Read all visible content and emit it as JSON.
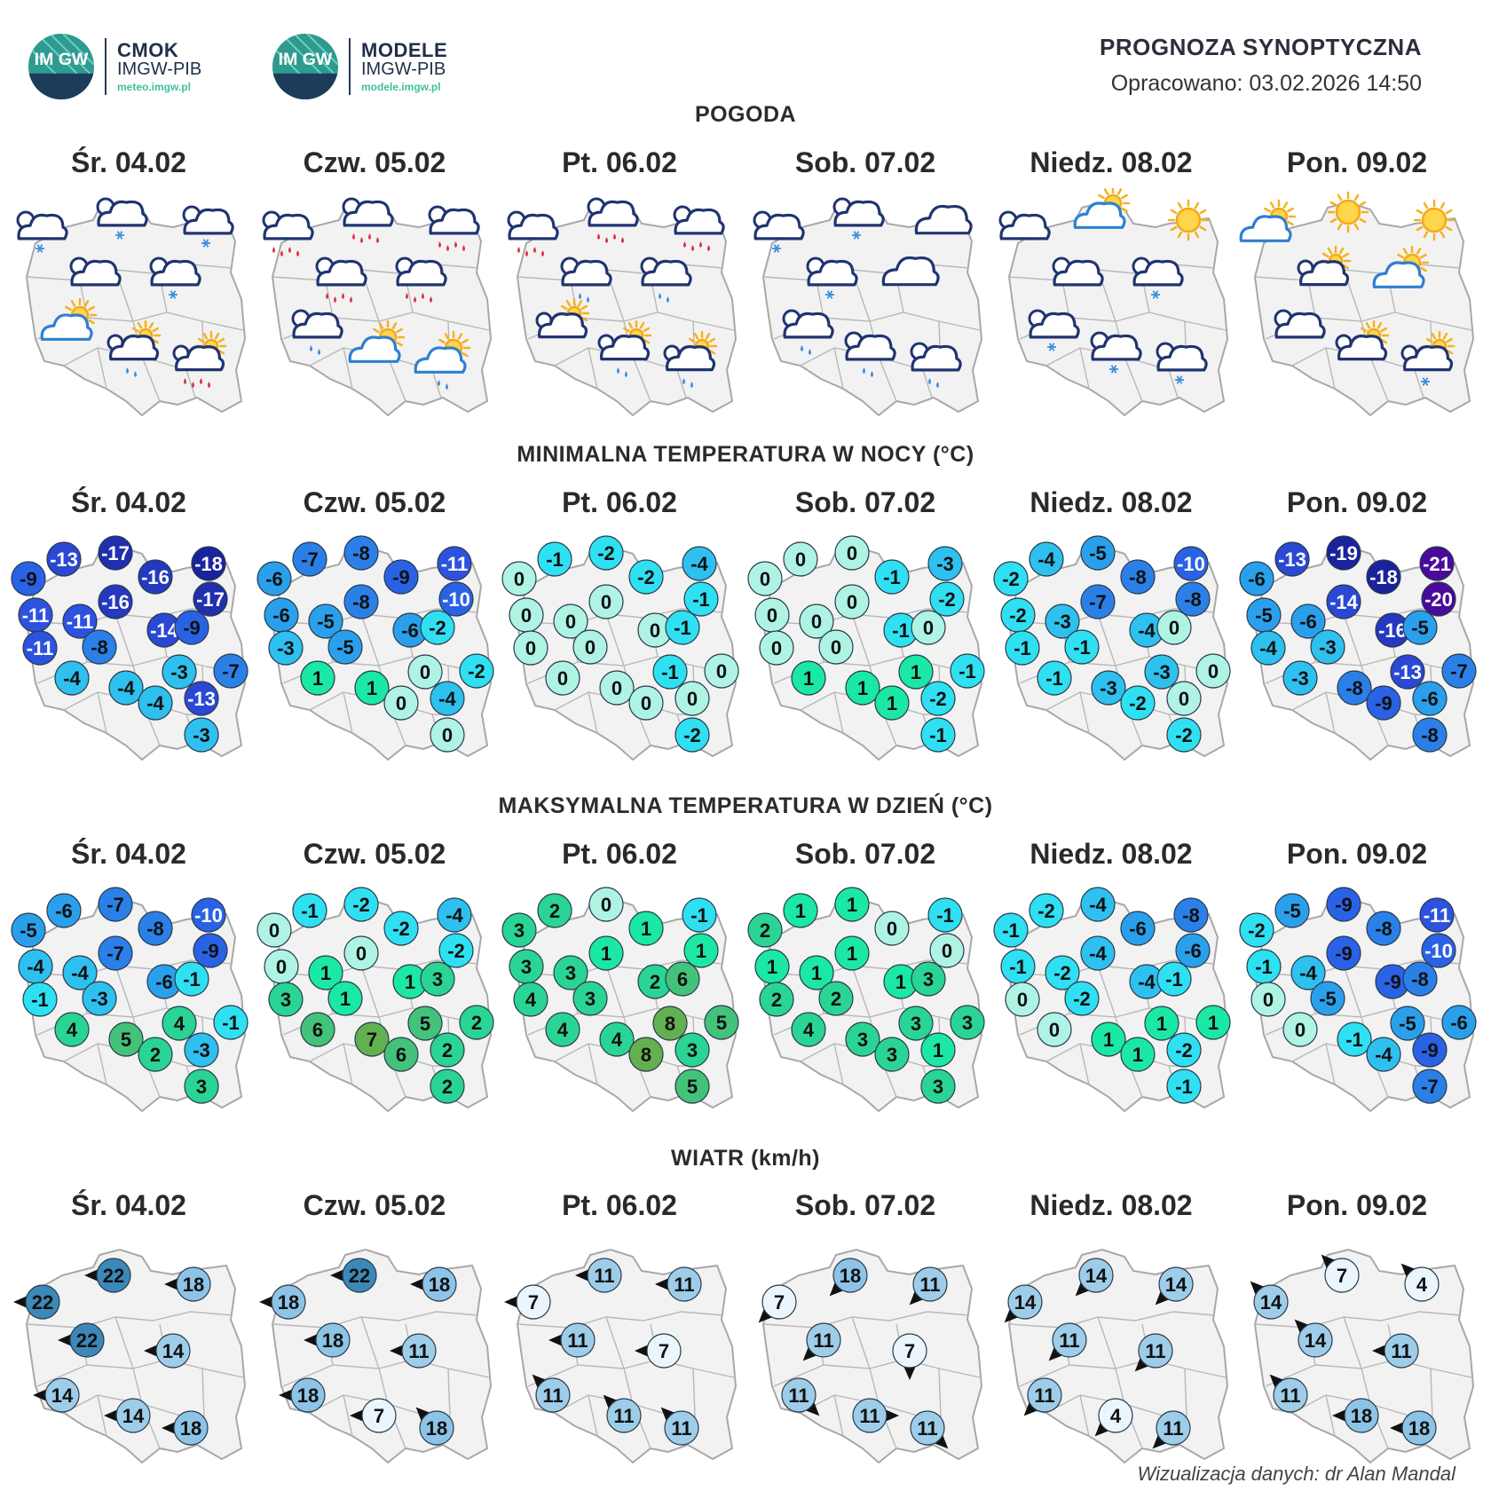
{
  "header": {
    "logo1": {
      "name": "CMOK",
      "org": "IMGW-PIB",
      "url": "meteo.imgw.pl",
      "emblem": "IM GW"
    },
    "logo2": {
      "name": "MODELE",
      "org": "IMGW-PIB",
      "url": "modele.imgw.pl",
      "emblem": "IM GW"
    },
    "title": "PROGNOZA SYNOPTYCZNA",
    "created": "Opracowano: 03.02.2026 14:50"
  },
  "days": [
    "Śr. 04.02",
    "Czw. 05.02",
    "Pt. 06.02",
    "Sob. 07.02",
    "Niedz. 08.02",
    "Pon. 09.02"
  ],
  "sections": {
    "weather": "POGODA",
    "tmin": "MINIMALNA TEMPERATURA W NOCY (°C)",
    "tmax": "MAKSYMALNA TEMPERATURA W DZIEŃ (°C)",
    "wind": "WIATR (km/h)"
  },
  "weather": [
    [
      "cloud-snow",
      "cloud-snow",
      "cloud-snow",
      "cloud-light",
      "cloud-light-snow",
      "partly-sunny",
      "cloud-sun-rain",
      "cloud-sun-heavy-rain"
    ],
    [
      "cloud-heavy-rain",
      "cloud-heavy-rain",
      "cloud-heavy-rain",
      "cloud-heavy-rain",
      "cloud-heavy-rain",
      "cloud-rain",
      "partly-sunny",
      "partly-sunny-rain"
    ],
    [
      "cloud-heavy-rain",
      "cloud-heavy-rain",
      "cloud-heavy-rain",
      "cloud-rain",
      "cloud-rain",
      "cloud-sun-light",
      "cloud-sun-rain",
      "cloud-sun-rain"
    ],
    [
      "cloud-snow",
      "cloud-snow",
      "overcast",
      "cloud-snow",
      "overcast",
      "cloud-rain",
      "cloud-rain",
      "cloud-rain"
    ],
    [
      "cloud-light",
      "partly-sunny",
      "sunny",
      "cloud-light",
      "cloud-snow",
      "cloud-snow",
      "cloud-snow",
      "cloud-snow"
    ],
    [
      "partly-sunny",
      "sunny",
      "sunny",
      "cloud-sun-light",
      "partly-sunny",
      "cloud-light",
      "cloud-sun-light",
      "cloud-sun-snow"
    ]
  ],
  "tmin": [
    [
      -9,
      -13,
      -17,
      -16,
      -18,
      -17,
      -11,
      -11,
      -16,
      -14,
      -11,
      -8,
      -4,
      -4,
      -4,
      -3,
      -9,
      -13,
      -7,
      -3
    ],
    [
      -6,
      -7,
      -8,
      -9,
      -11,
      -10,
      -6,
      -5,
      -8,
      -6,
      -3,
      -5,
      1,
      1,
      0,
      0,
      -2,
      -4,
      -2,
      0
    ],
    [
      0,
      -1,
      -2,
      -2,
      -4,
      -1,
      0,
      0,
      0,
      0,
      0,
      0,
      0,
      0,
      0,
      -1,
      -1,
      0,
      0,
      -2
    ],
    [
      0,
      0,
      0,
      -1,
      -3,
      -2,
      0,
      0,
      0,
      -1,
      0,
      0,
      1,
      1,
      1,
      1,
      0,
      -2,
      -1,
      -1
    ],
    [
      -2,
      -4,
      -5,
      -8,
      -10,
      -8,
      -2,
      -3,
      -7,
      -4,
      -1,
      -1,
      -1,
      -3,
      -2,
      -3,
      0,
      0,
      0,
      -2
    ],
    [
      -6,
      -13,
      -19,
      -18,
      -21,
      -20,
      -5,
      -6,
      -14,
      -16,
      -4,
      -3,
      -3,
      -8,
      -9,
      -13,
      -5,
      -6,
      -7,
      -8
    ]
  ],
  "tmax": [
    [
      -5,
      -6,
      -7,
      -8,
      -10,
      -9,
      -4,
      -4,
      -7,
      -6,
      -1,
      -3,
      4,
      5,
      2,
      4,
      -1,
      -3,
      -1,
      3
    ],
    [
      0,
      -1,
      -2,
      -2,
      -4,
      -2,
      0,
      1,
      0,
      1,
      3,
      1,
      6,
      7,
      6,
      5,
      3,
      2,
      2,
      2
    ],
    [
      3,
      2,
      0,
      1,
      -1,
      1,
      3,
      3,
      1,
      2,
      4,
      3,
      4,
      4,
      8,
      8,
      6,
      3,
      5,
      5
    ],
    [
      2,
      1,
      1,
      0,
      -1,
      0,
      1,
      1,
      1,
      1,
      2,
      2,
      4,
      3,
      3,
      3,
      3,
      1,
      3,
      3
    ],
    [
      -1,
      -2,
      -4,
      -6,
      -8,
      -6,
      -1,
      -2,
      -4,
      -4,
      0,
      -2,
      0,
      1,
      1,
      1,
      -1,
      -2,
      1,
      -1
    ],
    [
      -2,
      -5,
      -9,
      -8,
      -11,
      -10,
      -1,
      -4,
      -9,
      -9,
      0,
      -5,
      0,
      -1,
      -4,
      -5,
      -8,
      -9,
      -6,
      -7
    ]
  ],
  "wind": [
    [
      {
        "v": 22,
        "d": "W"
      },
      {
        "v": 22,
        "d": "W"
      },
      {
        "v": 18,
        "d": "W"
      },
      {
        "v": 22,
        "d": "W"
      },
      {
        "v": 14,
        "d": "W"
      },
      {
        "v": 14,
        "d": "W"
      },
      {
        "v": 14,
        "d": "W"
      },
      {
        "v": 18,
        "d": "W"
      }
    ],
    [
      {
        "v": 18,
        "d": "W"
      },
      {
        "v": 22,
        "d": "W"
      },
      {
        "v": 18,
        "d": "W"
      },
      {
        "v": 18,
        "d": "W"
      },
      {
        "v": 11,
        "d": "W"
      },
      {
        "v": 18,
        "d": "W"
      },
      {
        "v": 7,
        "d": "W"
      },
      {
        "v": 18,
        "d": "NW"
      }
    ],
    [
      {
        "v": 7,
        "d": "W"
      },
      {
        "v": 11,
        "d": "W"
      },
      {
        "v": 11,
        "d": "W"
      },
      {
        "v": 11,
        "d": "W"
      },
      {
        "v": 7,
        "d": "W"
      },
      {
        "v": 11,
        "d": "NW"
      },
      {
        "v": 11,
        "d": "NW"
      },
      {
        "v": 11,
        "d": "NW"
      }
    ],
    [
      {
        "v": 7,
        "d": "SW"
      },
      {
        "v": 18,
        "d": "SW"
      },
      {
        "v": 11,
        "d": "SW"
      },
      {
        "v": 11,
        "d": "SW"
      },
      {
        "v": 7,
        "d": "S"
      },
      {
        "v": 11,
        "d": "SE"
      },
      {
        "v": 11,
        "d": "E"
      },
      {
        "v": 11,
        "d": "SE"
      }
    ],
    [
      {
        "v": 14,
        "d": "SW"
      },
      {
        "v": 14,
        "d": "SW"
      },
      {
        "v": 14,
        "d": "SW"
      },
      {
        "v": 11,
        "d": "SW"
      },
      {
        "v": 11,
        "d": "SW"
      },
      {
        "v": 11,
        "d": "SW"
      },
      {
        "v": 4,
        "d": "SW"
      },
      {
        "v": 11,
        "d": "SW"
      }
    ],
    [
      {
        "v": 14,
        "d": "NW"
      },
      {
        "v": 7,
        "d": "NW"
      },
      {
        "v": 4,
        "d": "NW"
      },
      {
        "v": 14,
        "d": "NW"
      },
      {
        "v": 11,
        "d": "W"
      },
      {
        "v": 11,
        "d": "NW"
      },
      {
        "v": 18,
        "d": "W"
      },
      {
        "v": 18,
        "d": "W"
      }
    ]
  ],
  "credit": "Wizualizacja danych: dr Alan Mandal"
}
